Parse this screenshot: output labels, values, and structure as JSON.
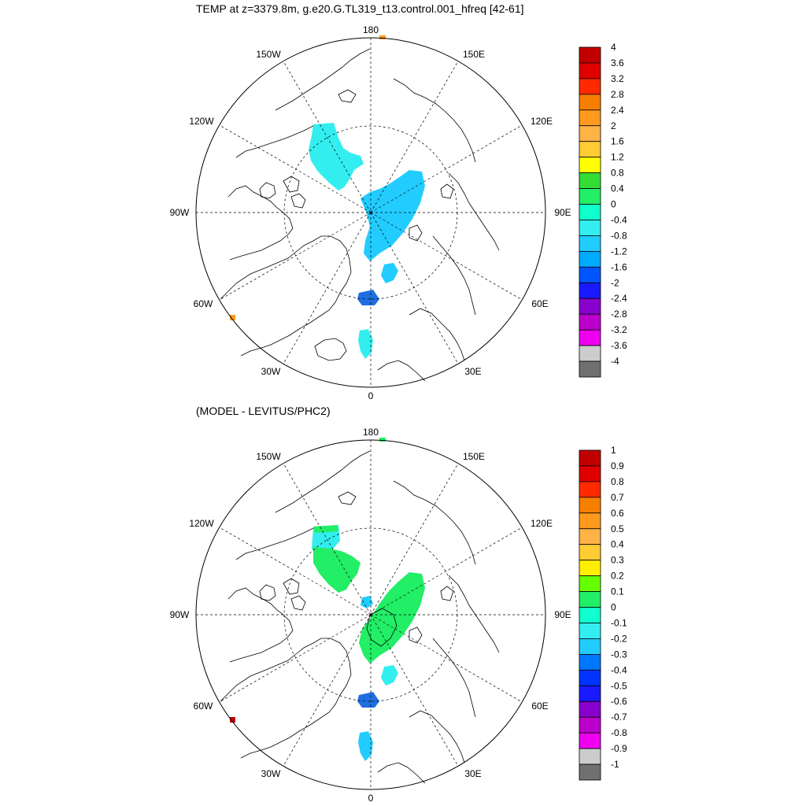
{
  "panels": [
    {
      "id": "top",
      "title": "TEMP at z=3379.8m, g.e20.G.TL319_t13.control.001_hfreq [42-61]",
      "lon_labels": {
        "p180": "180",
        "p150w": "150W",
        "p150e": "150E",
        "p120w": "120W",
        "p120e": "120E",
        "p90w": "90W",
        "p90e": "90E",
        "p60w": "60W",
        "p60e": "60E",
        "p30w": "30W",
        "p30e": "30E",
        "p0": "0"
      },
      "colorbar": {
        "labels": [
          "4",
          "3.6",
          "3.2",
          "2.8",
          "2.4",
          "2",
          "1.6",
          "1.2",
          "0.8",
          "0.4",
          "0",
          "-0.4",
          "-0.8",
          "-1.2",
          "-1.6",
          "-2",
          "-2.4",
          "-2.8",
          "-3.2",
          "-3.6",
          "-4"
        ],
        "colors": [
          "#c00000",
          "#e00000",
          "#ff2a00",
          "#f77f00",
          "#ff9a1f",
          "#ffb347",
          "#ffcc33",
          "#ffff00",
          "#33dd33",
          "#22ee66",
          "#11ffcc",
          "#33eeee",
          "#22ccff",
          "#00aaff",
          "#0055ff",
          "#1a1aff",
          "#8800cc",
          "#bb00cc",
          "#ee00ee",
          "#cccccc",
          "#707070"
        ]
      }
    },
    {
      "id": "bottom",
      "title": "(MODEL - LEVITUS/PHC2)",
      "lon_labels": {
        "p180": "180",
        "p150w": "150W",
        "p150e": "150E",
        "p120w": "120W",
        "p120e": "120E",
        "p90w": "90W",
        "p90e": "90E",
        "p60w": "60W",
        "p60e": "60E",
        "p30w": "30W",
        "p30e": "30E",
        "p0": "0"
      },
      "colorbar": {
        "labels": [
          "1",
          "0.9",
          "0.8",
          "0.7",
          "0.6",
          "0.5",
          "0.4",
          "0.3",
          "0.2",
          "0.1",
          "0",
          "-0.1",
          "-0.2",
          "-0.3",
          "-0.4",
          "-0.5",
          "-0.6",
          "-0.7",
          "-0.8",
          "-0.9",
          "-1"
        ],
        "colors": [
          "#c00000",
          "#e00000",
          "#ff2a00",
          "#f77f00",
          "#ff9a1f",
          "#ffb347",
          "#ffcc33",
          "#ffee00",
          "#66ff00",
          "#22ee66",
          "#11ffcc",
          "#33eeee",
          "#22ccff",
          "#0077ff",
          "#0033ff",
          "#1a1aff",
          "#8800cc",
          "#bb00cc",
          "#ee00ee",
          "#cccccc",
          "#707070"
        ]
      }
    }
  ],
  "colors": {
    "coast": "#000000",
    "grid": "#000000",
    "cyan_patch": "#33eeee",
    "light_blue_patch": "#22ccff",
    "blue_patch": "#1f6fe0",
    "green_patch": "#22ee66",
    "orange_patch": "#ff9a1f",
    "red_patch": "#c00000"
  }
}
